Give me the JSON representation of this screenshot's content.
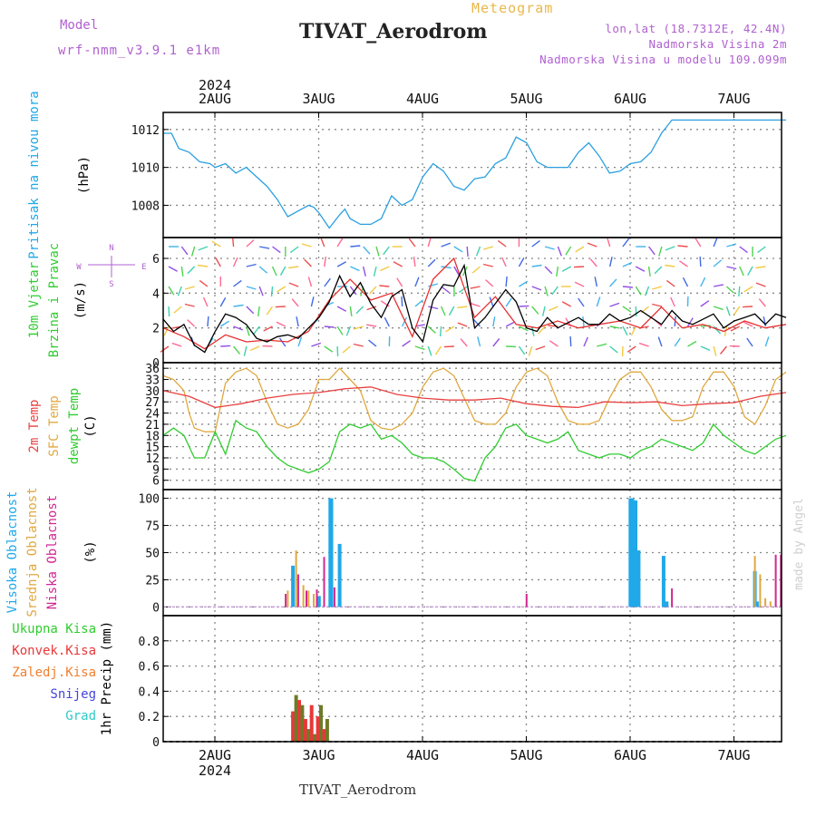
{
  "header": {
    "title": "TIVAT_Aerodrom",
    "subtitle": "Meteogram",
    "model_label": "Model",
    "model_value": "wrf-nmm_v3.9.1 e1km",
    "lonlat": "lon,lat (18.7312E, 42.4N)",
    "elevation": "Nadmorska Visina 2m",
    "model_elevation": "Nadmorska Visina u modelu 109.099m",
    "bottom_title": "TIVAT_Aerodrom",
    "watermark": "made by Angel"
  },
  "time_axis": {
    "year": "2024",
    "days": [
      "2AUG",
      "3AUG",
      "4AUG",
      "5AUG",
      "6AUG",
      "7AUG"
    ]
  },
  "chart_data": [
    {
      "type": "line",
      "id": "pressure",
      "ylabel": "Pritisak na nivou mora",
      "unit": "(hPa)",
      "ylim": [
        1006.3,
        1012.9
      ],
      "yticks": [
        "1008",
        "1010",
        "1012"
      ],
      "colors": {
        "line": "#2aa0e0"
      },
      "series": [
        {
          "x": [
            0,
            0.08,
            0.15,
            0.25,
            0.35,
            0.45,
            0.5,
            0.6,
            0.7,
            0.8,
            0.9,
            1.0,
            1.1,
            1.2,
            1.3,
            1.4,
            1.45,
            1.5,
            1.6,
            1.7,
            1.75,
            1.8,
            1.9,
            2.0,
            2.1,
            2.2,
            2.3,
            2.4,
            2.5,
            2.6,
            2.7,
            2.8,
            2.9,
            3.0,
            3.1,
            3.2,
            3.3,
            3.4,
            3.5,
            3.6,
            3.7,
            3.8,
            3.9,
            4.0,
            4.1,
            4.2,
            4.3,
            4.4,
            4.5,
            4.6,
            4.7,
            4.8,
            4.9,
            5.0,
            5.1,
            5.2,
            5.3,
            5.4,
            5.5,
            5.6,
            5.7,
            5.8,
            5.9,
            6.0
          ],
          "values": [
            1011.8,
            1011.8,
            1011.0,
            1010.8,
            1010.3,
            1010.2,
            1010.0,
            1010.2,
            1009.7,
            1010.0,
            1009.5,
            1009.0,
            1008.3,
            1007.4,
            1007.7,
            1008.0,
            1007.9,
            1007.6,
            1006.8,
            1007.5,
            1007.8,
            1007.3,
            1007.0,
            1007.0,
            1007.3,
            1008.5,
            1008.0,
            1008.3,
            1009.5,
            1010.2,
            1009.8,
            1009.0,
            1008.8,
            1009.4,
            1009.5,
            1010.2,
            1010.5,
            1011.6,
            1011.3,
            1010.3,
            1010.0,
            1010.0,
            1010.0,
            1010.8,
            1011.3,
            1010.6,
            1009.7,
            1009.8,
            1010.2,
            1010.3,
            1010.8,
            1011.8,
            1012.5,
            1012.5,
            1012.5,
            1012.5,
            1012.5,
            1012.5,
            1012.5,
            1012.5,
            1012.5,
            1012.5,
            1012.5,
            1012.5
          ]
        }
      ]
    },
    {
      "type": "line",
      "id": "wind",
      "ylabel": "10m Vjetar",
      "ylabel2": "Brzina i Pravac",
      "unit": "(m/s)",
      "ylim": [
        0,
        7.2
      ],
      "yticks": [
        "0",
        "2",
        "4",
        "6"
      ],
      "compass": {
        "n": "N",
        "s": "S",
        "e": "E",
        "w": "W"
      },
      "colors": {
        "speed": "#000000",
        "gust": "#e83030"
      },
      "series": [
        {
          "x": [
            0,
            0.1,
            0.2,
            0.3,
            0.4,
            0.5,
            0.6,
            0.7,
            0.8,
            0.9,
            1.0,
            1.1,
            1.2,
            1.3,
            1.4,
            1.5,
            1.6,
            1.7,
            1.8,
            1.9,
            2.0,
            2.1,
            2.2,
            2.3,
            2.4,
            2.5,
            2.6,
            2.7,
            2.8,
            2.9,
            3.0,
            3.1,
            3.2,
            3.3,
            3.4,
            3.5,
            3.6,
            3.7,
            3.8,
            3.9,
            4.0,
            4.1,
            4.2,
            4.3,
            4.4,
            4.5,
            4.6,
            4.7,
            4.8,
            4.9,
            5.0,
            5.1,
            5.2,
            5.3,
            5.4,
            5.5,
            5.6,
            5.7,
            5.8,
            5.9,
            6.0
          ],
          "values": [
            2.5,
            1.8,
            2.2,
            1.0,
            0.6,
            1.8,
            2.8,
            2.6,
            2.2,
            1.4,
            1.2,
            1.5,
            1.6,
            1.4,
            2.0,
            2.6,
            3.5,
            5.0,
            3.8,
            4.6,
            3.4,
            2.6,
            3.8,
            4.2,
            2.0,
            1.2,
            3.6,
            4.5,
            4.4,
            5.6,
            2.0,
            2.6,
            3.4,
            4.2,
            3.5,
            2.0,
            1.8,
            2.6,
            2.0,
            2.3,
            2.6,
            2.2,
            2.2,
            2.8,
            2.4,
            2.6,
            3.0,
            2.6,
            2.2,
            3.0,
            2.4,
            2.2,
            2.5,
            2.8,
            2.0,
            2.4,
            2.6,
            2.8,
            2.2,
            2.8,
            2.6
          ]
        },
        {
          "x": [
            0,
            0.2,
            0.4,
            0.6,
            0.8,
            1.0,
            1.2,
            1.4,
            1.6,
            1.8,
            2.0,
            2.2,
            2.4,
            2.6,
            2.8,
            3.0,
            3.2,
            3.4,
            3.6,
            3.8,
            4.0,
            4.2,
            4.4,
            4.6,
            4.8,
            5.0,
            5.2,
            5.4,
            5.6,
            5.8,
            6.0
          ],
          "values": [
            2.0,
            1.5,
            0.8,
            1.6,
            1.2,
            1.3,
            1.2,
            1.8,
            3.6,
            4.8,
            3.6,
            4.0,
            1.5,
            4.8,
            6.0,
            2.6,
            3.8,
            2.2,
            2.0,
            2.4,
            2.0,
            2.2,
            2.4,
            2.0,
            3.2,
            2.0,
            2.2,
            1.8,
            2.4,
            2.0,
            2.2
          ]
        }
      ]
    },
    {
      "type": "line",
      "id": "temperature",
      "ylabel": "2m Temp",
      "ylabel2": "SFC Temp",
      "ylabel3": "dewpt Temp",
      "unit": "(C)",
      "ylim": [
        3.5,
        37.5
      ],
      "yticks": [
        "6",
        "9",
        "12",
        "15",
        "18",
        "21",
        "24",
        "27",
        "30",
        "33",
        "36"
      ],
      "colors": {
        "t2m": "#e84040",
        "sfc": "#e0a840",
        "dewpt": "#30cc30"
      },
      "series": [
        {
          "name": "2m Temp",
          "x": [
            0,
            0.25,
            0.5,
            0.75,
            1.0,
            1.25,
            1.5,
            1.75,
            2.0,
            2.25,
            2.5,
            2.75,
            3.0,
            3.25,
            3.5,
            3.75,
            4.0,
            4.25,
            4.5,
            4.75,
            5.0,
            5.25,
            5.5,
            5.75,
            6.0
          ],
          "values": [
            30,
            28.5,
            25.5,
            26.5,
            28,
            29,
            29.5,
            30.5,
            31,
            29,
            28,
            27.5,
            27.5,
            28,
            26.5,
            25.8,
            25.5,
            27,
            26.8,
            27,
            26,
            26.5,
            26.8,
            28.5,
            29.5
          ]
        },
        {
          "name": "SFC Temp",
          "x": [
            0,
            0.1,
            0.2,
            0.25,
            0.3,
            0.4,
            0.5,
            0.6,
            0.7,
            0.8,
            0.9,
            1.0,
            1.1,
            1.2,
            1.3,
            1.4,
            1.5,
            1.6,
            1.7,
            1.8,
            1.9,
            2.0,
            2.1,
            2.2,
            2.3,
            2.4,
            2.5,
            2.6,
            2.7,
            2.8,
            2.9,
            3.0,
            3.1,
            3.2,
            3.3,
            3.4,
            3.5,
            3.6,
            3.7,
            3.8,
            3.9,
            4.0,
            4.1,
            4.2,
            4.3,
            4.4,
            4.5,
            4.6,
            4.7,
            4.8,
            4.9,
            5.0,
            5.1,
            5.2,
            5.3,
            5.4,
            5.5,
            5.6,
            5.7,
            5.8,
            5.9,
            6.0
          ],
          "values": [
            34,
            33,
            30,
            24,
            20,
            19,
            19,
            32,
            35,
            36,
            34,
            27,
            21,
            20,
            21,
            25,
            33,
            33,
            36,
            33,
            30,
            22,
            20,
            19.5,
            21,
            24,
            31,
            35,
            36,
            34,
            28,
            22,
            21,
            21,
            24,
            31,
            35,
            36,
            34,
            27,
            22,
            21,
            21,
            22,
            28,
            33,
            35,
            35,
            31,
            25,
            22,
            22,
            23,
            31,
            35,
            35,
            31,
            23,
            21,
            26,
            33,
            35
          ]
        },
        {
          "name": "dewpt Temp",
          "x": [
            0,
            0.1,
            0.2,
            0.3,
            0.4,
            0.5,
            0.6,
            0.7,
            0.8,
            0.9,
            1.0,
            1.1,
            1.2,
            1.3,
            1.4,
            1.5,
            1.6,
            1.7,
            1.8,
            1.9,
            2.0,
            2.1,
            2.2,
            2.3,
            2.4,
            2.5,
            2.6,
            2.7,
            2.8,
            2.9,
            3.0,
            3.1,
            3.2,
            3.3,
            3.4,
            3.5,
            3.6,
            3.7,
            3.8,
            3.9,
            4.0,
            4.1,
            4.2,
            4.3,
            4.4,
            4.5,
            4.6,
            4.7,
            4.8,
            4.9,
            5.0,
            5.1,
            5.2,
            5.3,
            5.4,
            5.5,
            5.6,
            5.7,
            5.8,
            5.9,
            6.0
          ],
          "values": [
            18,
            20,
            18,
            12,
            12,
            19,
            13,
            22,
            20,
            19,
            15,
            12,
            10,
            9,
            8,
            9,
            11,
            19,
            21,
            20,
            21,
            17,
            18,
            16,
            13,
            12,
            12,
            11,
            9,
            6.5,
            5.8,
            12,
            15,
            20,
            21,
            18,
            17,
            16,
            17,
            19,
            14,
            13,
            12,
            13,
            13,
            12,
            14,
            15,
            17,
            16,
            15,
            14,
            16,
            21,
            18,
            16,
            14,
            13,
            15,
            17,
            18
          ]
        }
      ]
    },
    {
      "type": "bar",
      "id": "cloud",
      "ylabel": "Visoka Oblacnost",
      "ylabel2": "Srednja Oblacnost",
      "ylabel3": "Niska Oblacnost",
      "unit": "(%)",
      "ylim": [
        -8,
        108
      ],
      "yticks": [
        "0",
        "25",
        "50",
        "75",
        "100"
      ],
      "colors": {
        "high": "#20a8e8",
        "mid": "#e0a840",
        "low": "#d02890"
      },
      "series": [
        {
          "name": "Visoka Oblacnost",
          "x": [
            1.25,
            1.5,
            1.61,
            1.62,
            1.7,
            4.5,
            4.52,
            4.55,
            4.58,
            4.82,
            4.85,
            5.7,
            5.72
          ],
          "values": [
            38,
            10,
            100,
            100,
            58,
            100,
            100,
            98,
            52,
            47,
            5,
            33,
            5
          ]
        },
        {
          "name": "Srednja Oblacnost",
          "x": [
            1.2,
            1.28,
            1.35,
            1.4,
            1.45,
            5.7,
            5.75,
            5.8,
            5.85
          ],
          "values": [
            15,
            52,
            20,
            15,
            12,
            47,
            30,
            8,
            5
          ]
        },
        {
          "name": "Niska Oblacnost",
          "x": [
            1.18,
            1.3,
            1.38,
            1.48,
            1.55,
            1.65,
            3.5,
            4.9,
            5.9,
            5.95
          ],
          "values": [
            12,
            30,
            15,
            16,
            46,
            18,
            12,
            17,
            48,
            48
          ]
        }
      ]
    },
    {
      "type": "bar",
      "id": "precip",
      "ylabel": "1hr Precip",
      "unit": "(mm)",
      "legend": [
        "Ukupna Kisa",
        "Konvek.Kisa",
        "Zaledj.Kisa",
        "Snijeg",
        "Grad"
      ],
      "ylim": [
        0,
        1.0
      ],
      "yticks": [
        "0",
        "0.2",
        "0.4",
        "0.6",
        "0.8"
      ],
      "colors": {
        "total": "#30cc30",
        "conv": "#e83838",
        "frozen": "#f08030",
        "snow": "#4444dd",
        "hail": "#30c8c8",
        "bars": "#6e7a28"
      },
      "series": [
        {
          "name": "Ukupna Kisa",
          "x": [
            1.25,
            1.28,
            1.31,
            1.34,
            1.37,
            1.4,
            1.43,
            1.46,
            1.49,
            1.52,
            1.55,
            1.58
          ],
          "values": [
            0.24,
            0.37,
            0.33,
            0.29,
            0.18,
            0.1,
            0.29,
            0.06,
            0.2,
            0.29,
            0.1,
            0.18
          ]
        }
      ]
    }
  ]
}
